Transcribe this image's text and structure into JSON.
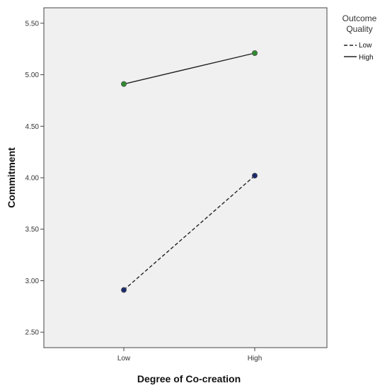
{
  "chart_data": {
    "type": "line",
    "xlabel": "Degree of  Co-creation",
    "ylabel": "Commitment",
    "categories": [
      "Low",
      "High"
    ],
    "ylim": [
      2.35,
      5.65
    ],
    "yticks": [
      "2.50",
      "3.00",
      "3.50",
      "4.00",
      "4.50",
      "5.00",
      "5.50"
    ],
    "grid": false,
    "legend": {
      "title_line1": "Outcome",
      "title_line2": "Quality",
      "position": "right"
    },
    "series": [
      {
        "name": "Low",
        "values": [
          2.91,
          4.02
        ],
        "style": "dashed",
        "marker_color": "#1a2a6c"
      },
      {
        "name": "High",
        "values": [
          4.91,
          5.21
        ],
        "style": "solid",
        "marker_color": "#2e8b2e"
      }
    ],
    "colors": {
      "plot_background": "#f0f0f0",
      "line": "#222222",
      "axis": "#333333"
    }
  }
}
